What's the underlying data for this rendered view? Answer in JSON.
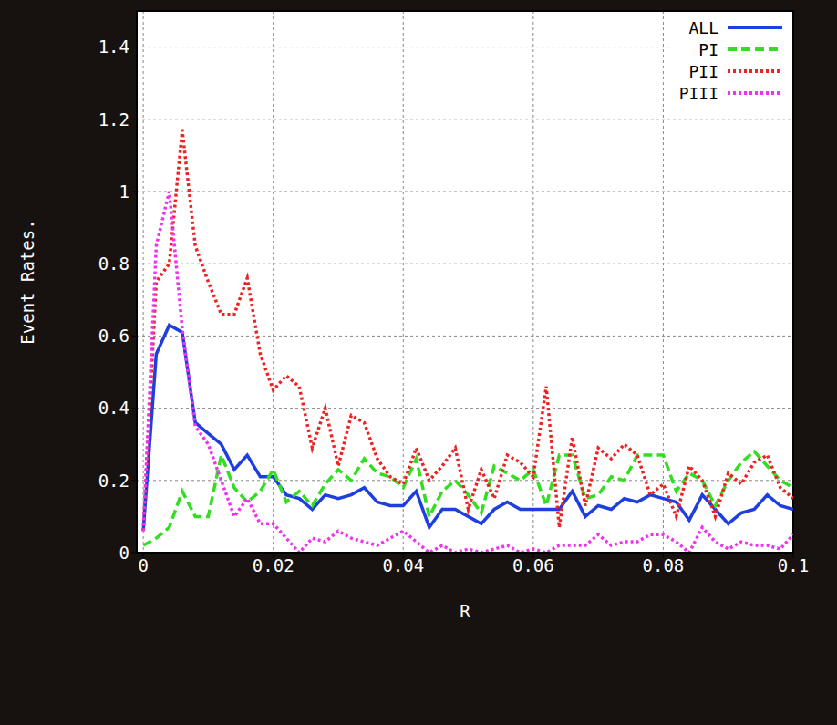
{
  "chart_data": {
    "type": "line",
    "x_label": "R",
    "y_label": "Event Rates.",
    "x": [
      0,
      0.002,
      0.004,
      0.006,
      0.008,
      0.01,
      0.012,
      0.014,
      0.016,
      0.018,
      0.02,
      0.022,
      0.024,
      0.026,
      0.028,
      0.03,
      0.032,
      0.034,
      0.036,
      0.038,
      0.04,
      0.042,
      0.044,
      0.046,
      0.048,
      0.05,
      0.052,
      0.054,
      0.056,
      0.058,
      0.06,
      0.062,
      0.064,
      0.066,
      0.068,
      0.07,
      0.072,
      0.074,
      0.076,
      0.078,
      0.08,
      0.082,
      0.084,
      0.086,
      0.088,
      0.09,
      0.092,
      0.094,
      0.096,
      0.098,
      0.1
    ],
    "series": [
      {
        "name": "ALL",
        "color": "#1f3ee0",
        "line_style": "solid",
        "values": [
          0.06,
          0.55,
          0.63,
          0.61,
          0.36,
          0.33,
          0.3,
          0.23,
          0.27,
          0.21,
          0.21,
          0.16,
          0.15,
          0.12,
          0.16,
          0.15,
          0.16,
          0.18,
          0.14,
          0.13,
          0.13,
          0.17,
          0.07,
          0.12,
          0.12,
          0.1,
          0.08,
          0.12,
          0.14,
          0.12,
          0.12,
          0.12,
          0.12,
          0.17,
          0.1,
          0.13,
          0.12,
          0.15,
          0.14,
          0.16,
          0.15,
          0.14,
          0.09,
          0.16,
          0.12,
          0.08,
          0.11,
          0.12,
          0.16,
          0.13,
          0.12
        ]
      },
      {
        "name": "PI",
        "color": "#33dd22",
        "line_style": "dashed",
        "values": [
          0.02,
          0.04,
          0.07,
          0.17,
          0.1,
          0.1,
          0.27,
          0.18,
          0.14,
          0.17,
          0.23,
          0.14,
          0.17,
          0.13,
          0.19,
          0.23,
          0.2,
          0.26,
          0.22,
          0.21,
          0.18,
          0.26,
          0.1,
          0.17,
          0.2,
          0.16,
          0.11,
          0.24,
          0.22,
          0.2,
          0.23,
          0.13,
          0.27,
          0.27,
          0.15,
          0.16,
          0.21,
          0.2,
          0.27,
          0.27,
          0.27,
          0.17,
          0.22,
          0.2,
          0.13,
          0.2,
          0.25,
          0.28,
          0.24,
          0.2,
          0.18
        ]
      },
      {
        "name": "PII",
        "color": "#ee2222",
        "line_style": "dotted",
        "values": [
          0.06,
          0.75,
          0.8,
          1.17,
          0.85,
          0.75,
          0.66,
          0.66,
          0.76,
          0.55,
          0.45,
          0.49,
          0.46,
          0.29,
          0.4,
          0.24,
          0.38,
          0.36,
          0.26,
          0.21,
          0.19,
          0.29,
          0.2,
          0.24,
          0.29,
          0.12,
          0.23,
          0.15,
          0.27,
          0.25,
          0.21,
          0.46,
          0.07,
          0.32,
          0.13,
          0.29,
          0.26,
          0.3,
          0.27,
          0.16,
          0.19,
          0.1,
          0.24,
          0.2,
          0.1,
          0.22,
          0.19,
          0.25,
          0.27,
          0.18,
          0.15
        ]
      },
      {
        "name": "PIII",
        "color": "#ee33ee",
        "line_style": "dotted",
        "values": [
          0.06,
          0.85,
          1.0,
          0.62,
          0.35,
          0.3,
          0.2,
          0.1,
          0.15,
          0.08,
          0.08,
          0.04,
          0.0,
          0.04,
          0.03,
          0.06,
          0.04,
          0.03,
          0.02,
          0.04,
          0.06,
          0.03,
          0.0,
          0.02,
          0.0,
          0.01,
          0.0,
          0.01,
          0.02,
          0.0,
          0.01,
          0.0,
          0.02,
          0.02,
          0.02,
          0.05,
          0.02,
          0.03,
          0.03,
          0.05,
          0.05,
          0.03,
          0.0,
          0.07,
          0.03,
          0.01,
          0.03,
          0.02,
          0.02,
          0.01,
          0.05
        ]
      }
    ],
    "xlim": [
      -0.001,
      0.1
    ],
    "xticks": [
      0,
      0.02,
      0.04,
      0.06,
      0.08,
      0.1
    ],
    "ylim": [
      0,
      1.5
    ],
    "yticks": [
      0,
      0.2,
      0.4,
      0.6,
      0.8,
      1,
      1.2,
      1.4
    ],
    "grid": true,
    "legend": "top right"
  }
}
